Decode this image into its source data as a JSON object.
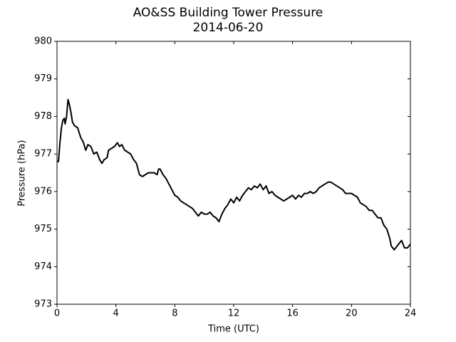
{
  "chart_data": {
    "type": "line",
    "title": "AO&SS Building Tower Pressure",
    "subtitle": "2014-06-20",
    "x_label": "Time (UTC)",
    "y_label": "Pressure (hPa)",
    "xlim": [
      0,
      24
    ],
    "xticks": [
      0,
      4,
      8,
      12,
      16,
      20,
      24
    ],
    "ylim": [
      973,
      980
    ],
    "yticks": [
      973,
      974,
      975,
      976,
      977,
      978,
      979,
      980
    ],
    "x": [
      0,
      0.1,
      0.2,
      0.3,
      0.4,
      0.5,
      0.55,
      0.65,
      0.75,
      0.85,
      0.95,
      1.05,
      1.2,
      1.4,
      1.6,
      1.8,
      1.95,
      2.1,
      2.3,
      2.5,
      2.7,
      2.9,
      3.05,
      3.2,
      3.4,
      3.5,
      3.7,
      3.9,
      4.1,
      4.25,
      4.4,
      4.6,
      4.8,
      5.0,
      5.2,
      5.4,
      5.6,
      5.8,
      6.0,
      6.2,
      6.4,
      6.6,
      6.8,
      6.9,
      7.0,
      7.2,
      7.4,
      7.6,
      7.8,
      8.0,
      8.2,
      8.4,
      8.6,
      8.8,
      9.0,
      9.2,
      9.4,
      9.6,
      9.8,
      10.0,
      10.2,
      10.4,
      10.6,
      10.8,
      11.0,
      11.2,
      11.4,
      11.6,
      11.8,
      12.0,
      12.2,
      12.4,
      12.6,
      12.8,
      13.0,
      13.2,
      13.4,
      13.6,
      13.8,
      14.0,
      14.2,
      14.4,
      14.6,
      14.8,
      15.0,
      15.2,
      15.4,
      15.6,
      15.8,
      16.0,
      16.2,
      16.4,
      16.6,
      16.8,
      17.0,
      17.2,
      17.4,
      17.6,
      17.8,
      18.0,
      18.2,
      18.4,
      18.6,
      18.8,
      19.0,
      19.2,
      19.4,
      19.6,
      19.8,
      20.0,
      20.2,
      20.4,
      20.6,
      20.8,
      21.0,
      21.2,
      21.4,
      21.6,
      21.8,
      22.0,
      22.2,
      22.4,
      22.6,
      22.7,
      22.9,
      23.1,
      23.3,
      23.4,
      23.6,
      23.8,
      24.0
    ],
    "series": [
      {
        "name": "Pressure",
        "color": "#000000",
        "values": [
          976.8,
          976.8,
          977.3,
          977.7,
          977.9,
          977.95,
          977.8,
          978.0,
          978.45,
          978.3,
          978.1,
          977.85,
          977.75,
          977.7,
          977.45,
          977.3,
          977.1,
          977.25,
          977.2,
          977.0,
          977.05,
          976.85,
          976.75,
          976.85,
          976.9,
          977.1,
          977.15,
          977.2,
          977.3,
          977.2,
          977.25,
          977.1,
          977.05,
          977.0,
          976.85,
          976.75,
          976.45,
          976.4,
          976.45,
          976.5,
          976.5,
          976.5,
          976.45,
          976.6,
          976.6,
          976.45,
          976.35,
          976.2,
          976.05,
          975.9,
          975.85,
          975.75,
          975.7,
          975.65,
          975.6,
          975.55,
          975.45,
          975.35,
          975.45,
          975.4,
          975.4,
          975.45,
          975.35,
          975.3,
          975.2,
          975.4,
          975.55,
          975.65,
          975.8,
          975.7,
          975.85,
          975.75,
          975.9,
          976.0,
          976.1,
          976.05,
          976.15,
          976.1,
          976.2,
          976.05,
          976.15,
          975.95,
          976.0,
          975.9,
          975.85,
          975.8,
          975.75,
          975.8,
          975.85,
          975.9,
          975.8,
          975.9,
          975.85,
          975.95,
          975.95,
          976.0,
          975.95,
          976.0,
          976.1,
          976.15,
          976.2,
          976.25,
          976.25,
          976.2,
          976.15,
          976.1,
          976.05,
          975.95,
          975.95,
          975.95,
          975.9,
          975.85,
          975.7,
          975.65,
          975.6,
          975.5,
          975.5,
          975.4,
          975.3,
          975.3,
          975.1,
          975.0,
          974.75,
          974.55,
          974.45,
          974.55,
          974.65,
          974.7,
          974.5,
          974.5,
          974.6
        ]
      }
    ]
  }
}
